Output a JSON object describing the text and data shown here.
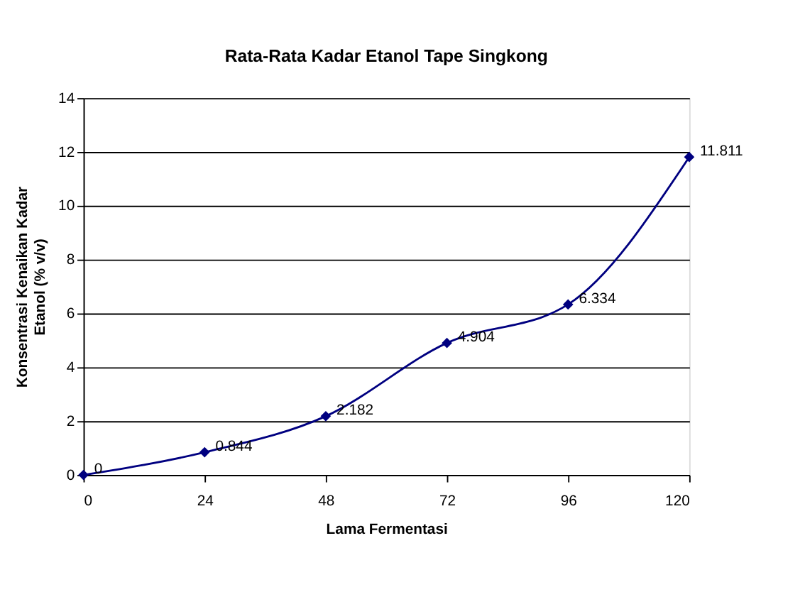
{
  "chart_data": {
    "type": "line",
    "title": "Rata-Rata Kadar Etanol Tape Singkong",
    "xlabel": "Lama Fermentasi",
    "ylabel": "Konsentrasi Kenaikan Kadar Etanol (% v/v)",
    "x": [
      0,
      24,
      48,
      72,
      96,
      120
    ],
    "series": [
      {
        "color": "#000080",
        "values": [
          0,
          0.844,
          2.182,
          4.904,
          6.334,
          11.811
        ]
      }
    ],
    "xlim": [
      0,
      120
    ],
    "xticks": [
      0,
      24,
      48,
      72,
      96,
      120
    ],
    "ylim": [
      0,
      14
    ],
    "yticks": [
      0,
      2,
      4,
      6,
      8,
      10,
      12,
      14
    ],
    "grid": "y",
    "marker": "diamond",
    "line_style": "solid",
    "data_labels": true,
    "legend": false
  }
}
